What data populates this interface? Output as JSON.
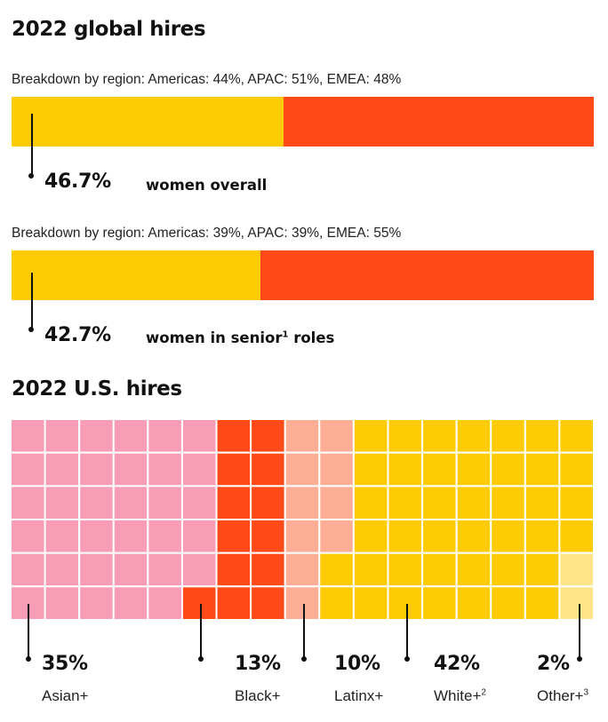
{
  "colors": {
    "yellow": "#FFCB05",
    "orange_red": "#FF4A17",
    "pink": "#F99CB6",
    "salmon": "#FDAE94",
    "light_yellow": "#FFE587",
    "grid_line": "#ffffff"
  },
  "global": {
    "title": "2022 global hires",
    "women_overall": {
      "breakdown": "Breakdown by region: Americas: 44%, APAC: 51%, EMEA: 48%",
      "value": "46.7%",
      "label": "women overall",
      "percent": 46.7
    },
    "women_senior": {
      "breakdown": "Breakdown by region: Americas: 39%, APAC: 39%, EMEA: 55%",
      "value": "42.7%",
      "label": "women in senior",
      "footnote": "1",
      "label_suffix": " roles",
      "percent": 42.7
    }
  },
  "us": {
    "title": "2022 U.S. hires"
  },
  "chart_data": [
    {
      "type": "bar",
      "orientation": "horizontal",
      "stacked": true,
      "title": "2022 global hires",
      "categories": [
        "women overall"
      ],
      "series": [
        {
          "values": [
            46.7
          ]
        },
        {
          "values": [
            53.3
          ]
        }
      ],
      "xlim": [
        0,
        100
      ]
    },
    {
      "type": "bar",
      "orientation": "horizontal",
      "stacked": true,
      "categories": [
        "women in senior roles"
      ],
      "series": [
        {
          "values": [
            42.7
          ]
        },
        {
          "values": [
            57.3
          ]
        }
      ],
      "xlim": [
        0,
        100
      ]
    },
    {
      "type": "waffle",
      "title": "2022 U.S. hires",
      "grid": {
        "columns": 17,
        "rows": 6
      },
      "categories": [
        {
          "label": "Asian+",
          "footnote": "",
          "value": "35%",
          "percent": 35,
          "cells": 35,
          "color": "#F99CB6"
        },
        {
          "label": "Black+",
          "footnote": "",
          "value": "13%",
          "percent": 13,
          "cells": 13,
          "color": "#FF4A17"
        },
        {
          "label": "Latinx+",
          "footnote": "",
          "value": "10%",
          "percent": 10,
          "cells": 10,
          "color": "#FDAE94"
        },
        {
          "label": "White+",
          "footnote": "2",
          "value": "42%",
          "percent": 42,
          "cells": 42,
          "color": "#FFCB05"
        },
        {
          "label": "Other+",
          "footnote": "3",
          "value": "2%",
          "percent": 2,
          "cells": 2,
          "color": "#FFE587"
        }
      ]
    }
  ]
}
